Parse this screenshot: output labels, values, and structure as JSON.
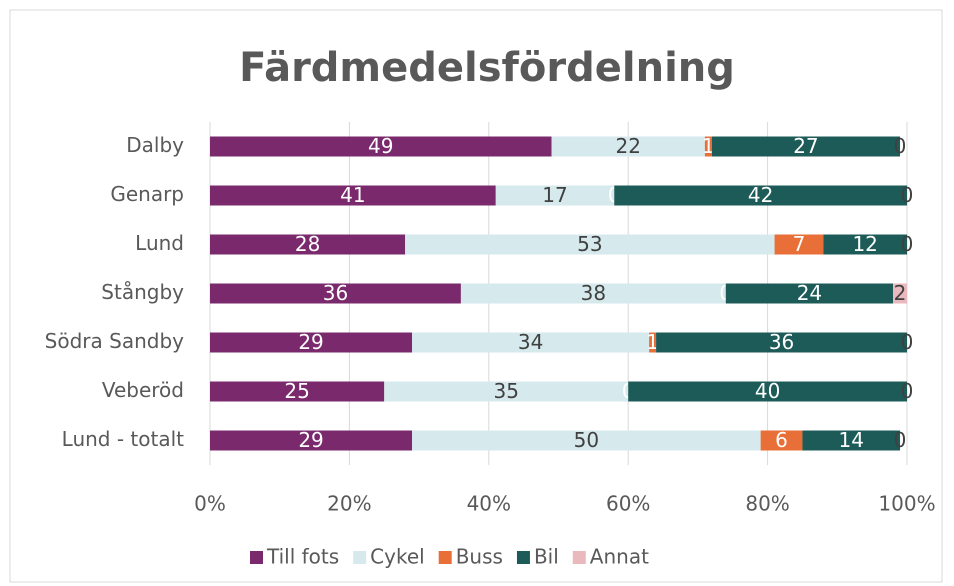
{
  "chart_data": {
    "type": "bar",
    "orientation": "horizontal",
    "stacked": true,
    "title": "Färdmedelsfördelning",
    "categories": [
      "Dalby",
      "Genarp",
      "Lund",
      "Stångby",
      "Södra Sandby",
      "Veberöd",
      "Lund - totalt"
    ],
    "series": [
      {
        "name": "Till fots",
        "color": "#7a2a6c",
        "values": [
          49,
          41,
          28,
          36,
          29,
          25,
          29
        ]
      },
      {
        "name": "Cykel",
        "color": "#d6eaee",
        "values": [
          22,
          17,
          53,
          38,
          34,
          35,
          50
        ]
      },
      {
        "name": "Buss",
        "color": "#e86f37",
        "values": [
          1,
          0,
          7,
          0,
          1,
          0,
          6
        ]
      },
      {
        "name": "Bil",
        "color": "#1c5b57",
        "values": [
          27,
          42,
          12,
          24,
          36,
          40,
          14
        ]
      },
      {
        "name": "Annat",
        "color": "#e9b9bd",
        "values": [
          0,
          0,
          0,
          2,
          0,
          0,
          0
        ]
      }
    ],
    "xlim": [
      0,
      100
    ],
    "xticks": [
      {
        "value": 0,
        "label": "0%"
      },
      {
        "value": 20,
        "label": "20%"
      },
      {
        "value": 40,
        "label": "40%"
      },
      {
        "value": 60,
        "label": "60%"
      },
      {
        "value": 80,
        "label": "80%"
      },
      {
        "value": 100,
        "label": "100%"
      }
    ],
    "grid": true,
    "legend": "bottom"
  }
}
